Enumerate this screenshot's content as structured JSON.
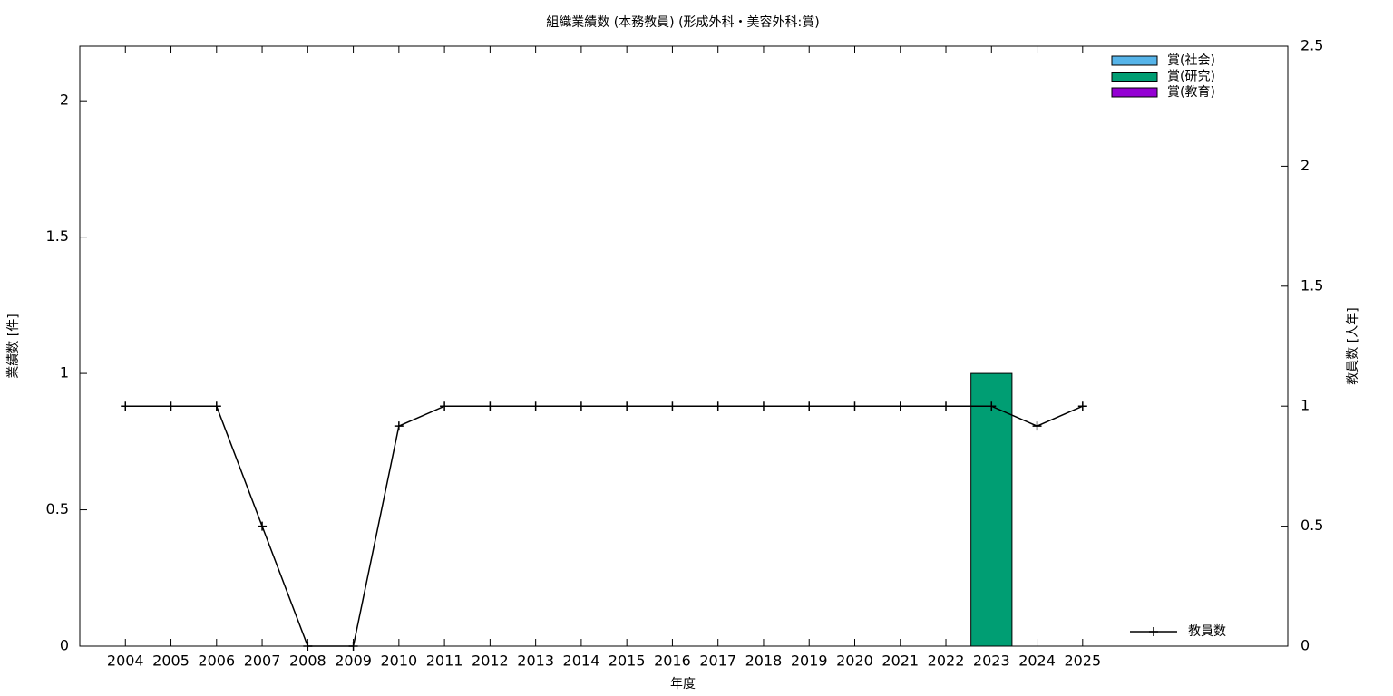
{
  "chart_data": {
    "type": "bar",
    "title": "組織業績数 (本務教員) (形成外科・美容外科:賞)",
    "x_label": "年度",
    "y_label": "業績数 [件]",
    "y2_label": "教員数 [人年]",
    "categories": [
      "2004",
      "2005",
      "2006",
      "2007",
      "2008",
      "2009",
      "2010",
      "2011",
      "2012",
      "2013",
      "2014",
      "2015",
      "2016",
      "2017",
      "2018",
      "2019",
      "2020",
      "2021",
      "2022",
      "2023",
      "2024",
      "2025"
    ],
    "series": [
      {
        "name": "賞(社会)",
        "color": "#56b4e9",
        "values": [
          0,
          0,
          0,
          0,
          0,
          0,
          0,
          0,
          0,
          0,
          0,
          0,
          0,
          0,
          0,
          0,
          0,
          0,
          0,
          0,
          0,
          0
        ]
      },
      {
        "name": "賞(研究)",
        "color": "#009e73",
        "values": [
          0,
          0,
          0,
          0,
          0,
          0,
          0,
          0,
          0,
          0,
          0,
          0,
          0,
          0,
          0,
          0,
          0,
          0,
          0,
          1,
          0,
          0
        ]
      },
      {
        "name": "賞(教育)",
        "color": "#9400d3",
        "values": [
          0,
          0,
          0,
          0,
          0,
          0,
          0,
          0,
          0,
          0,
          0,
          0,
          0,
          0,
          0,
          0,
          0,
          0,
          0,
          0,
          0,
          0
        ]
      },
      {
        "name": "教員数",
        "color": "#000000",
        "type": "line",
        "axis": "y2",
        "values": [
          1,
          1,
          1,
          0.5,
          0,
          0,
          0.917,
          1,
          1,
          1,
          1,
          1,
          1,
          1,
          1,
          1,
          1,
          1,
          1,
          1,
          0.917,
          1
        ]
      }
    ],
    "ylim": [
      0,
      2.2
    ],
    "yticks": [
      0,
      0.5,
      1,
      1.5,
      2
    ],
    "y2lim": [
      0,
      2.5
    ],
    "y2ticks": [
      0,
      0.5,
      1,
      1.5,
      2,
      2.5
    ]
  }
}
